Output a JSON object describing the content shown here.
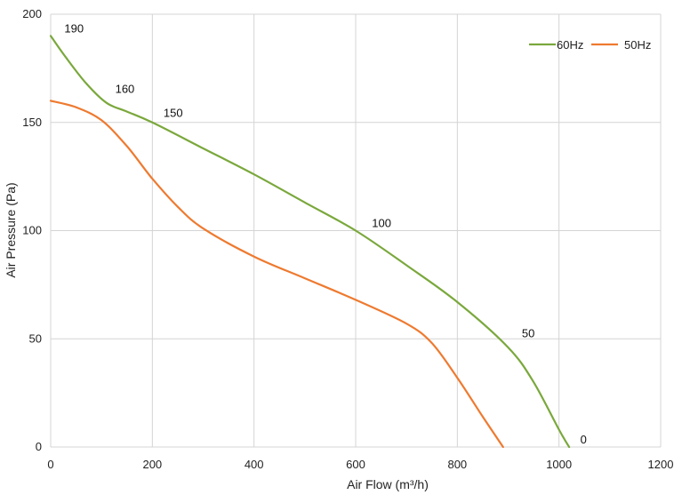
{
  "chart_data": {
    "type": "line",
    "xlabel": "Air Flow  (m³/h)",
    "ylabel": "Air Pressure  (Pa)",
    "xlim": [
      0,
      1200
    ],
    "ylim": [
      0,
      200
    ],
    "x_ticks": [
      "0",
      "200",
      "400",
      "600",
      "800",
      "1000",
      "1200"
    ],
    "y_ticks": [
      "0",
      "50",
      "100",
      "150",
      "200"
    ],
    "grid": true,
    "legend_position": "top-right",
    "series": [
      {
        "name": "60Hz",
        "color": "#7aa83c",
        "points": [
          [
            0,
            190
          ],
          [
            30,
            180
          ],
          [
            70,
            168
          ],
          [
            110,
            159
          ],
          [
            150,
            155
          ],
          [
            200,
            150
          ],
          [
            300,
            138
          ],
          [
            400,
            126
          ],
          [
            500,
            113
          ],
          [
            600,
            100
          ],
          [
            700,
            84
          ],
          [
            800,
            67
          ],
          [
            900,
            46
          ],
          [
            950,
            30
          ],
          [
            1000,
            8
          ],
          [
            1020,
            0
          ]
        ]
      },
      {
        "name": "50Hz",
        "color": "#ee7a30",
        "points": [
          [
            0,
            160
          ],
          [
            50,
            157
          ],
          [
            100,
            151
          ],
          [
            150,
            139
          ],
          [
            200,
            124
          ],
          [
            250,
            111
          ],
          [
            300,
            101
          ],
          [
            400,
            88
          ],
          [
            500,
            78
          ],
          [
            600,
            68
          ],
          [
            700,
            57
          ],
          [
            750,
            48
          ],
          [
            800,
            32
          ],
          [
            850,
            14
          ],
          [
            890,
            0
          ]
        ]
      }
    ],
    "annotations": [
      {
        "text": "190",
        "x": 20,
        "y": 190
      },
      {
        "text": "160",
        "x": 120,
        "y": 162
      },
      {
        "text": "150",
        "x": 215,
        "y": 151
      },
      {
        "text": "100",
        "x": 625,
        "y": 100
      },
      {
        "text": "50",
        "x": 920,
        "y": 49
      },
      {
        "text": "0",
        "x": 1035,
        "y": 0
      }
    ]
  }
}
